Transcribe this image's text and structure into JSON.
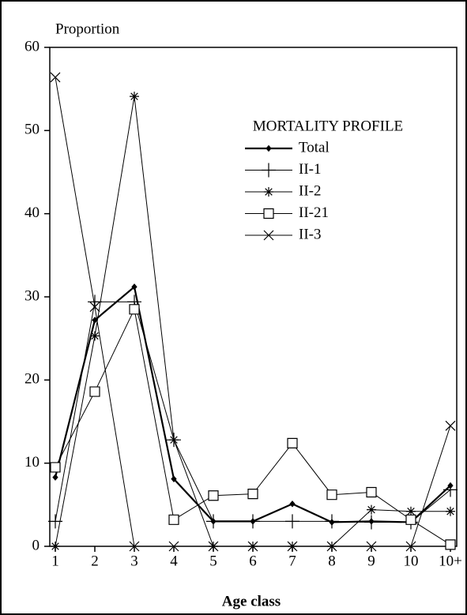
{
  "chart_data": {
    "type": "line",
    "title": "MORTALITY PROFILE",
    "y_label": "Proportion",
    "x_label": "Age class",
    "categories": [
      "1",
      "2",
      "3",
      "4",
      "5",
      "6",
      "7",
      "8",
      "9",
      "10",
      "10+"
    ],
    "series": [
      {
        "name": "Total",
        "color": "#000000",
        "marker": "diamond",
        "values": [
          8.3,
          27.2,
          31.2,
          8.1,
          3.0,
          3.0,
          5.1,
          2.9,
          3.0,
          2.9,
          7.3
        ]
      },
      {
        "name": "II-1",
        "color": "#000000",
        "marker": "plus",
        "values": [
          3.0,
          29.4,
          29.4,
          12.8,
          3.0,
          3.0,
          3.0,
          3.0,
          2.9,
          2.9,
          6.8
        ]
      },
      {
        "name": "II-2",
        "color": "#000000",
        "marker": "asterisk",
        "values": [
          0,
          25.3,
          54.1,
          12.8,
          0,
          0,
          0,
          0,
          4.4,
          4.2,
          4.2
        ]
      },
      {
        "name": "II-21",
        "color": "#000000",
        "marker": "square",
        "values": [
          9.5,
          18.6,
          28.5,
          3.2,
          6.1,
          6.3,
          12.4,
          6.2,
          6.5,
          3.2,
          0.2
        ]
      },
      {
        "name": "II-3",
        "color": "#000000",
        "marker": "x",
        "values": [
          56.4,
          28.8,
          0,
          0,
          0,
          0,
          0,
          0,
          0,
          0,
          14.5
        ]
      }
    ],
    "ylim": [
      0,
      60
    ],
    "yticks": [
      0,
      10,
      20,
      30,
      40,
      50,
      60
    ],
    "grid": false
  }
}
